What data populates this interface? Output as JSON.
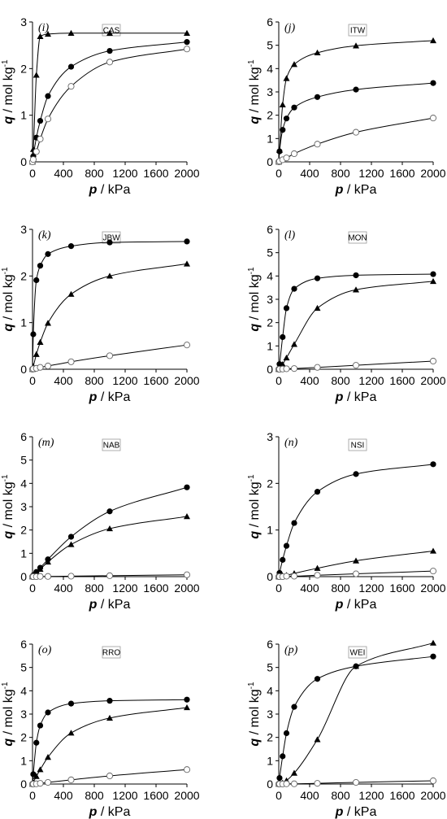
{
  "chart_data": [
    {
      "type": "line",
      "panel": "(i)",
      "tag": "CAS",
      "xlabel_var": "p",
      "xlabel_unit": " / kPa",
      "ylabel_var": "q",
      "ylabel_unit": " / mol kg",
      "ylabel_sup": "-1",
      "xlim": [
        0,
        2000
      ],
      "ylim": [
        0,
        3
      ],
      "xticks": [
        0,
        400,
        800,
        1200,
        1600,
        2000
      ],
      "yticks": [
        0,
        1,
        2,
        3
      ],
      "series": [
        {
          "marker": "triangle",
          "x": [
            0,
            10,
            50,
            100,
            200,
            500,
            1000,
            2000
          ],
          "y": [
            0,
            0.27,
            1.86,
            2.69,
            2.74,
            2.76,
            2.76,
            2.76
          ]
        },
        {
          "marker": "filled-circle",
          "x": [
            0,
            10,
            50,
            100,
            200,
            500,
            1000,
            2000
          ],
          "y": [
            0,
            0.12,
            0.52,
            0.88,
            1.41,
            2.04,
            2.38,
            2.57
          ]
        },
        {
          "marker": "open-circle",
          "x": [
            0,
            10,
            50,
            100,
            200,
            500,
            1000,
            2000
          ],
          "y": [
            0,
            0.05,
            0.22,
            0.49,
            0.92,
            1.62,
            2.14,
            2.42
          ]
        }
      ]
    },
    {
      "type": "line",
      "panel": "(j)",
      "tag": "ITW",
      "xlabel_var": "p",
      "xlabel_unit": " / kPa",
      "ylabel_var": "q",
      "ylabel_unit": " / mol kg",
      "ylabel_sup": "-1",
      "xlim": [
        0,
        2000
      ],
      "ylim": [
        0,
        6
      ],
      "xticks": [
        0,
        400,
        800,
        1200,
        1600,
        2000
      ],
      "yticks": [
        0,
        1,
        2,
        3,
        4,
        5,
        6
      ],
      "series": [
        {
          "marker": "triangle",
          "x": [
            0,
            10,
            50,
            100,
            200,
            500,
            1000,
            2000
          ],
          "y": [
            0,
            0.5,
            2.45,
            3.58,
            4.18,
            4.68,
            4.98,
            5.2
          ]
        },
        {
          "marker": "filled-circle",
          "x": [
            0,
            10,
            50,
            100,
            200,
            500,
            1000,
            2000
          ],
          "y": [
            0,
            0.45,
            1.37,
            1.86,
            2.33,
            2.78,
            3.1,
            3.38
          ]
        },
        {
          "marker": "open-circle",
          "x": [
            0,
            10,
            50,
            100,
            200,
            500,
            1000,
            2000
          ],
          "y": [
            0,
            0.03,
            0.09,
            0.17,
            0.35,
            0.76,
            1.27,
            1.88
          ]
        }
      ]
    },
    {
      "type": "line",
      "panel": "(k)",
      "tag": "JBW",
      "xlabel_var": "p",
      "xlabel_unit": " / kPa",
      "ylabel_var": "q",
      "ylabel_unit": " / mol kg",
      "ylabel_sup": "-1",
      "xlim": [
        0,
        2000
      ],
      "ylim": [
        0,
        3
      ],
      "xticks": [
        0,
        400,
        800,
        1200,
        1600,
        2000
      ],
      "yticks": [
        0,
        1,
        2,
        3
      ],
      "series": [
        {
          "marker": "filled-circle",
          "x": [
            0,
            10,
            50,
            100,
            200,
            500,
            1000,
            2000
          ],
          "y": [
            0,
            0.75,
            1.91,
            2.22,
            2.47,
            2.64,
            2.72,
            2.74
          ]
        },
        {
          "marker": "triangle",
          "x": [
            0,
            10,
            50,
            100,
            200,
            500,
            1000,
            2000
          ],
          "y": [
            0,
            0.06,
            0.32,
            0.58,
            0.99,
            1.61,
            2.0,
            2.26
          ]
        },
        {
          "marker": "open-circle",
          "x": [
            0,
            10,
            50,
            100,
            200,
            500,
            1000,
            2000
          ],
          "y": [
            0,
            0.01,
            0.02,
            0.04,
            0.07,
            0.16,
            0.29,
            0.52
          ]
        }
      ]
    },
    {
      "type": "line",
      "panel": "(l)",
      "tag": "MON",
      "xlabel_var": "p",
      "xlabel_unit": " / kPa",
      "ylabel_var": "q",
      "ylabel_unit": " / mol kg",
      "ylabel_sup": "-1",
      "xlim": [
        0,
        2000
      ],
      "ylim": [
        0,
        6
      ],
      "xticks": [
        0,
        400,
        800,
        1200,
        1600,
        2000
      ],
      "yticks": [
        0,
        1,
        2,
        3,
        4,
        5,
        6
      ],
      "series": [
        {
          "marker": "filled-circle",
          "x": [
            0,
            10,
            50,
            100,
            200,
            500,
            1000,
            2000
          ],
          "y": [
            0,
            0.22,
            1.38,
            2.62,
            3.45,
            3.9,
            4.03,
            4.08
          ]
        },
        {
          "marker": "triangle",
          "x": [
            0,
            10,
            50,
            100,
            200,
            500,
            1000,
            2000
          ],
          "y": [
            0,
            0.03,
            0.21,
            0.49,
            1.07,
            2.62,
            3.41,
            3.77
          ]
        },
        {
          "marker": "open-circle",
          "x": [
            0,
            10,
            50,
            100,
            200,
            500,
            1000,
            2000
          ],
          "y": [
            0,
            0.0,
            0.01,
            0.02,
            0.03,
            0.08,
            0.17,
            0.35
          ]
        }
      ]
    },
    {
      "type": "line",
      "panel": "(m)",
      "tag": "NAB",
      "xlabel_var": "p",
      "xlabel_unit": " / kPa",
      "ylabel_var": "q",
      "ylabel_unit": " / mol kg",
      "ylabel_sup": "-1",
      "xlim": [
        0,
        2000
      ],
      "ylim": [
        0,
        6
      ],
      "xticks": [
        0,
        400,
        800,
        1200,
        1600,
        2000
      ],
      "yticks": [
        0,
        1,
        2,
        3,
        4,
        5,
        6
      ],
      "series": [
        {
          "marker": "filled-circle",
          "x": [
            0,
            10,
            50,
            100,
            200,
            500,
            1000,
            2000
          ],
          "y": [
            0,
            0.06,
            0.2,
            0.38,
            0.74,
            1.71,
            2.8,
            3.83
          ]
        },
        {
          "marker": "triangle",
          "x": [
            0,
            10,
            50,
            100,
            200,
            500,
            1000,
            2000
          ],
          "y": [
            0,
            0.04,
            0.16,
            0.32,
            0.63,
            1.38,
            2.06,
            2.58
          ]
        },
        {
          "marker": "open-circle",
          "x": [
            0,
            10,
            50,
            100,
            200,
            500,
            1000,
            2000
          ],
          "y": [
            0,
            0.0,
            0.0,
            0.01,
            0.01,
            0.02,
            0.04,
            0.08
          ]
        }
      ]
    },
    {
      "type": "line",
      "panel": "(n)",
      "tag": "NSI",
      "xlabel_var": "p",
      "xlabel_unit": " / kPa",
      "ylabel_var": "q",
      "ylabel_unit": " / mol kg",
      "ylabel_sup": "-1",
      "xlim": [
        0,
        2000
      ],
      "ylim": [
        0,
        3
      ],
      "xticks": [
        0,
        400,
        800,
        1200,
        1600,
        2000
      ],
      "yticks": [
        0,
        1,
        2,
        3
      ],
      "series": [
        {
          "marker": "filled-circle",
          "x": [
            0,
            10,
            50,
            100,
            200,
            500,
            1000,
            2000
          ],
          "y": [
            0,
            0.08,
            0.36,
            0.66,
            1.15,
            1.82,
            2.2,
            2.41
          ]
        },
        {
          "marker": "triangle",
          "x": [
            0,
            10,
            50,
            100,
            200,
            500,
            1000,
            2000
          ],
          "y": [
            0,
            0.0,
            0.02,
            0.03,
            0.07,
            0.18,
            0.34,
            0.55
          ]
        },
        {
          "marker": "open-circle",
          "x": [
            0,
            10,
            50,
            100,
            200,
            500,
            1000,
            2000
          ],
          "y": [
            0,
            0.0,
            0.0,
            0.01,
            0.01,
            0.03,
            0.06,
            0.12
          ]
        }
      ]
    },
    {
      "type": "line",
      "panel": "(o)",
      "tag": "RRO",
      "xlabel_var": "p",
      "xlabel_unit": " / kPa",
      "ylabel_var": "q",
      "ylabel_unit": " / mol kg",
      "ylabel_sup": "-1",
      "xlim": [
        0,
        2000
      ],
      "ylim": [
        0,
        6
      ],
      "xticks": [
        0,
        400,
        800,
        1200,
        1600,
        2000
      ],
      "yticks": [
        0,
        1,
        2,
        3,
        4,
        5,
        6
      ],
      "series": [
        {
          "marker": "filled-circle",
          "x": [
            0,
            10,
            50,
            100,
            200,
            500,
            1000,
            2000
          ],
          "y": [
            0,
            0.42,
            1.77,
            2.51,
            3.07,
            3.45,
            3.57,
            3.62
          ]
        },
        {
          "marker": "triangle",
          "x": [
            0,
            10,
            50,
            100,
            200,
            500,
            1000,
            2000
          ],
          "y": [
            0,
            0.07,
            0.33,
            0.62,
            1.15,
            2.19,
            2.83,
            3.28
          ]
        },
        {
          "marker": "open-circle",
          "x": [
            0,
            10,
            50,
            100,
            200,
            500,
            1000,
            2000
          ],
          "y": [
            0,
            0.0,
            0.01,
            0.03,
            0.07,
            0.18,
            0.35,
            0.62
          ]
        }
      ]
    },
    {
      "type": "line",
      "panel": "(p)",
      "tag": "WEI",
      "xlabel_var": "p",
      "xlabel_unit": " / kPa",
      "ylabel_var": "q",
      "ylabel_unit": " / mol kg",
      "ylabel_sup": "-1",
      "xlim": [
        0,
        2000
      ],
      "ylim": [
        0,
        6
      ],
      "xticks": [
        0,
        400,
        800,
        1200,
        1600,
        2000
      ],
      "yticks": [
        0,
        1,
        2,
        3,
        4,
        5,
        6
      ],
      "series": [
        {
          "marker": "filled-circle",
          "x": [
            0,
            10,
            50,
            100,
            200,
            500,
            1000,
            2000
          ],
          "y": [
            0,
            0.26,
            1.19,
            2.18,
            3.31,
            4.51,
            5.05,
            5.47
          ]
        },
        {
          "marker": "triangle",
          "x": [
            0,
            10,
            50,
            100,
            200,
            500,
            1000,
            2000
          ],
          "y": [
            0,
            0.01,
            0.05,
            0.15,
            0.47,
            1.91,
            5.05,
            6.05
          ]
        },
        {
          "marker": "open-circle",
          "x": [
            0,
            10,
            50,
            100,
            200,
            500,
            1000,
            2000
          ],
          "y": [
            0,
            0.0,
            0.0,
            0.01,
            0.01,
            0.03,
            0.07,
            0.14
          ]
        }
      ]
    }
  ]
}
